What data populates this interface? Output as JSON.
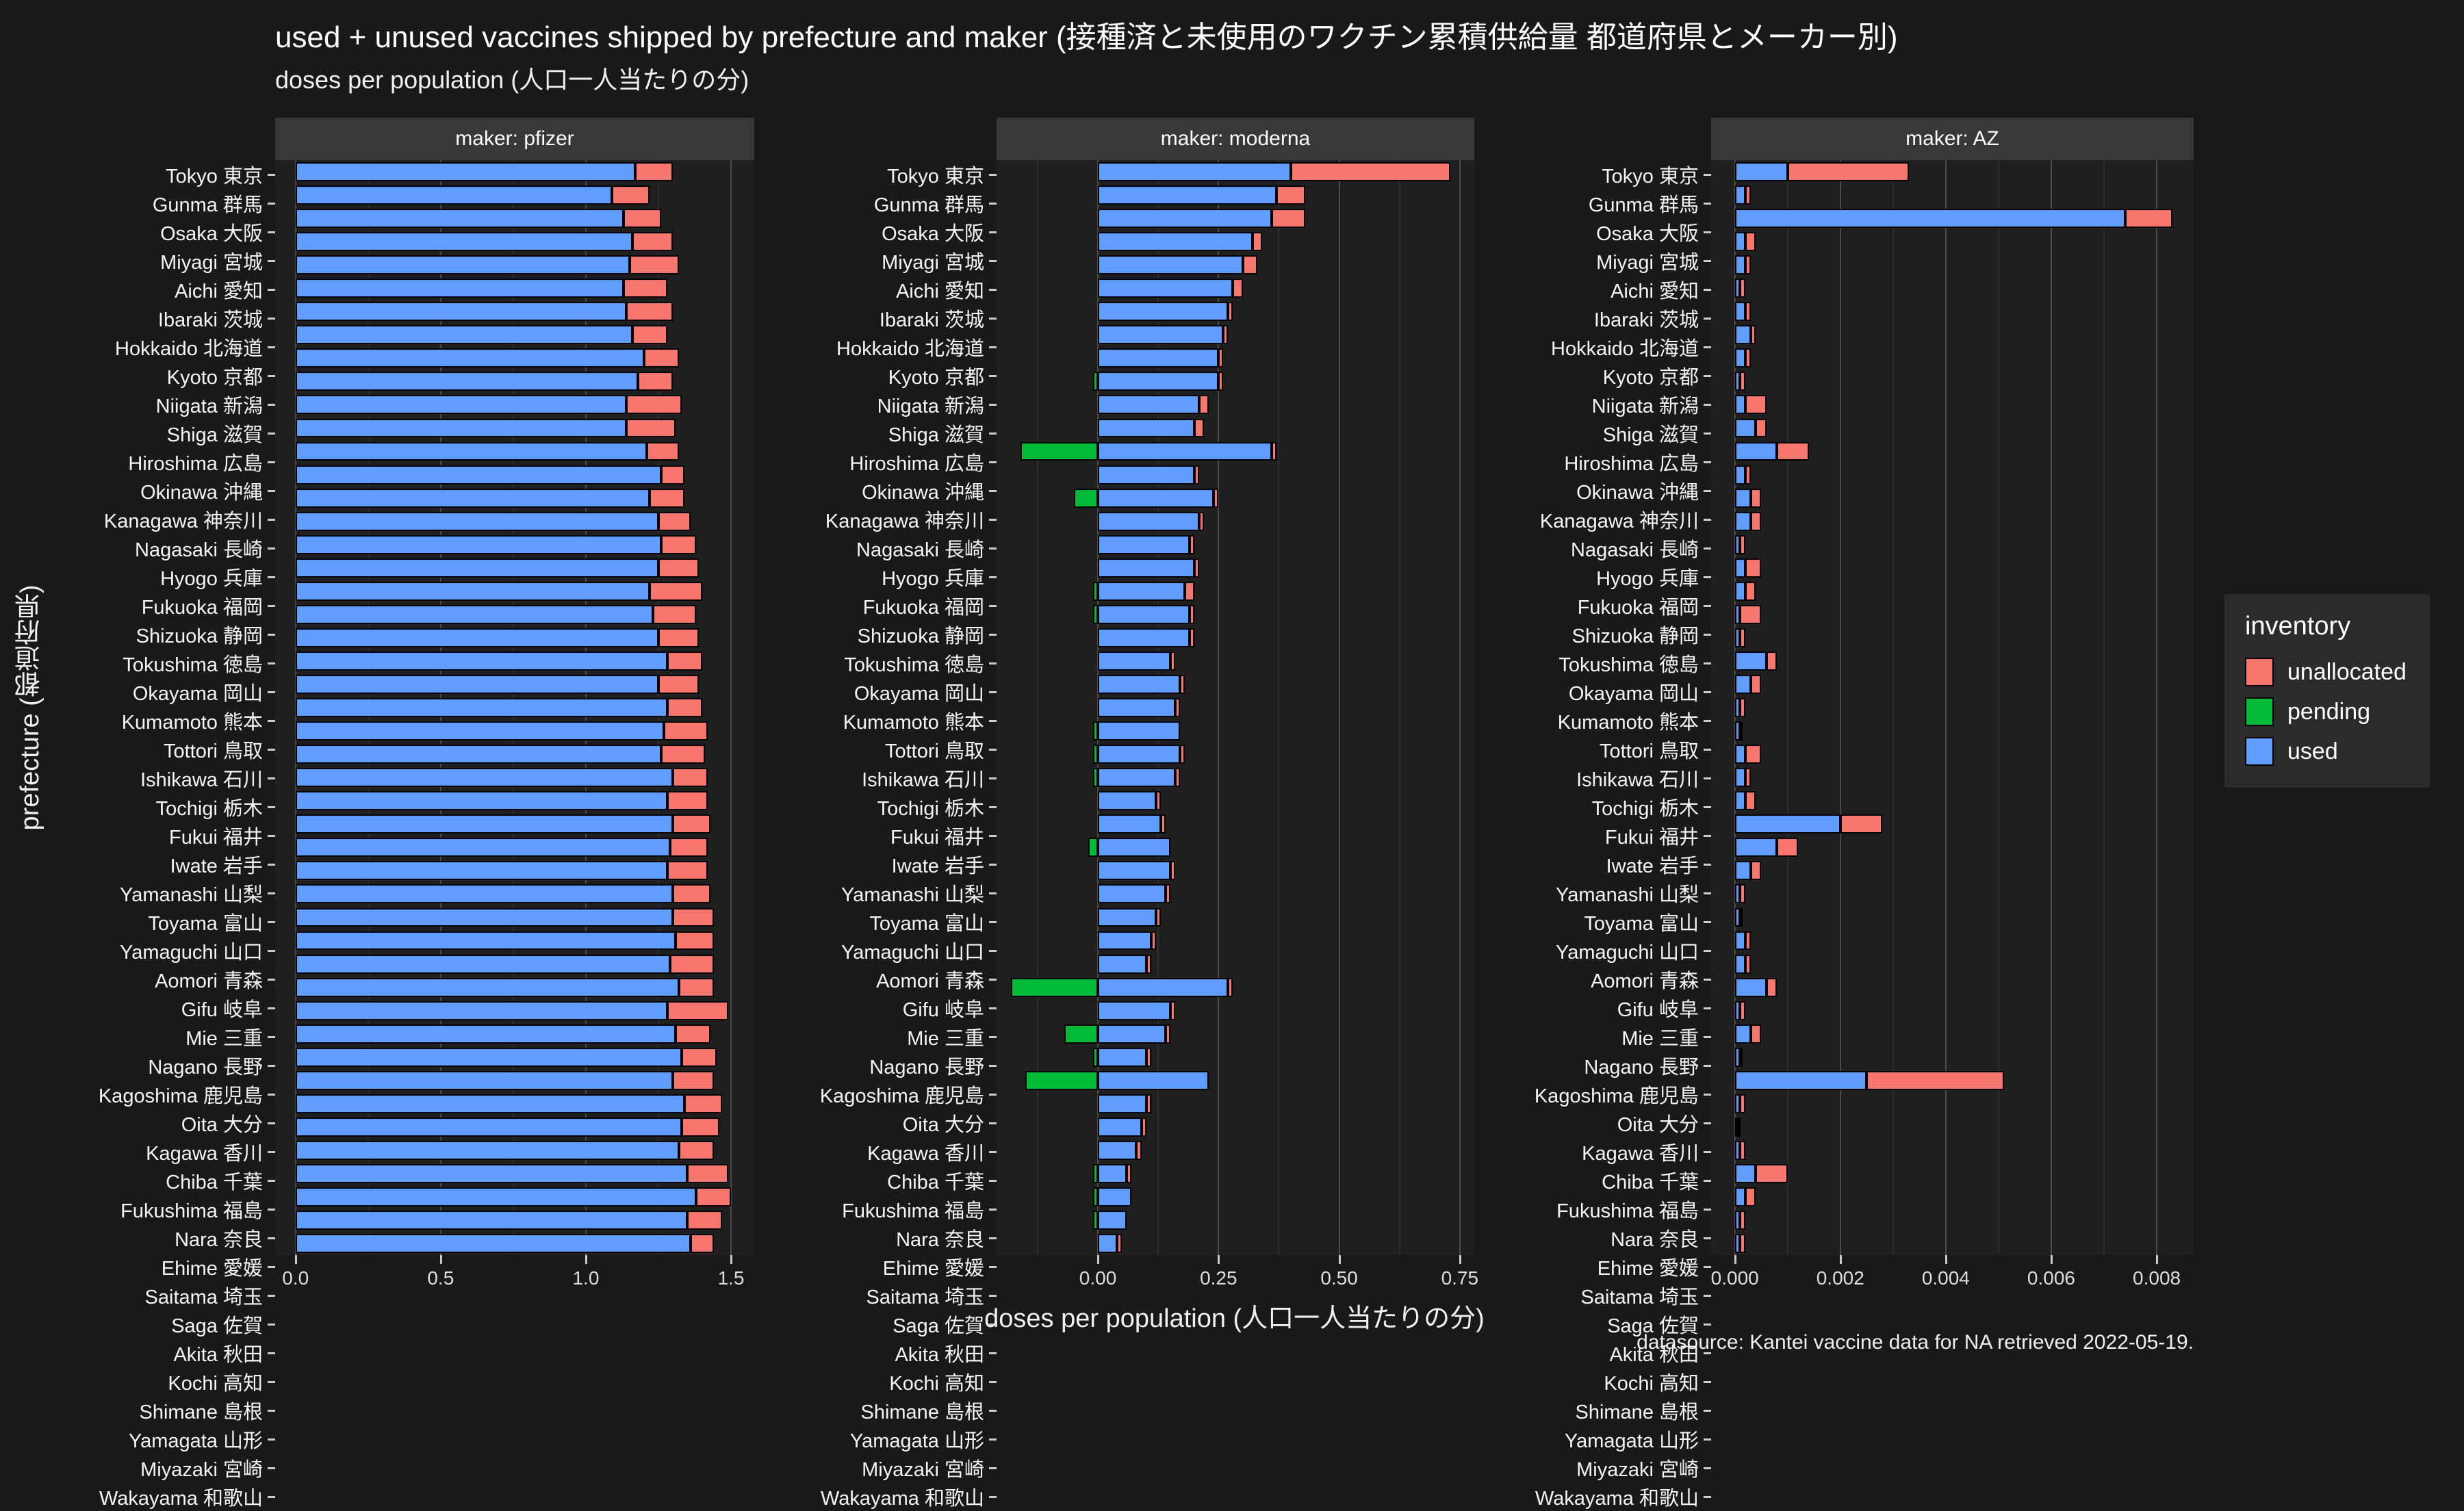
{
  "title": "used + unused vaccines shipped by prefecture and maker (接種済と未使用のワクチン累積供給量 都道府県とメーカー別)",
  "subtitle": "doses per population (人口一人当たりの分)",
  "xlabel": "doses per population (人口一人当たりの分)",
  "ylabel": "prefecture (都道府県)",
  "caption": "datasource: Kantei vaccine data for NA retrieved 2022-05-19.",
  "colors": {
    "used": "#619CFF",
    "pending": "#00BA38",
    "unallocated": "#F8766D",
    "background": "#191919",
    "panel": "#1f1f1f",
    "strip": "#383838"
  },
  "legend": {
    "title": "inventory",
    "position": "right",
    "items": [
      {
        "label": "unallocated",
        "color": "#F8766D"
      },
      {
        "label": "pending",
        "color": "#00BA38"
      },
      {
        "label": "used",
        "color": "#619CFF"
      }
    ]
  },
  "chart_data": {
    "type": "bar",
    "orientation": "horizontal",
    "stacking": "stacked",
    "categories": [
      "Tokyo 東京",
      "Gunma 群馬",
      "Osaka 大阪",
      "Miyagi 宮城",
      "Aichi 愛知",
      "Ibaraki 茨城",
      "Hokkaido 北海道",
      "Kyoto 京都",
      "Niigata 新潟",
      "Shiga 滋賀",
      "Hiroshima 広島",
      "Okinawa 沖縄",
      "Kanagawa 神奈川",
      "Nagasaki 長崎",
      "Hyogo 兵庫",
      "Fukuoka 福岡",
      "Shizuoka 静岡",
      "Tokushima 徳島",
      "Okayama 岡山",
      "Kumamoto 熊本",
      "Tottori 鳥取",
      "Ishikawa 石川",
      "Tochigi 栃木",
      "Fukui 福井",
      "Iwate 岩手",
      "Yamanashi 山梨",
      "Toyama 富山",
      "Yamaguchi 山口",
      "Aomori 青森",
      "Gifu 岐阜",
      "Mie 三重",
      "Nagano 長野",
      "Kagoshima 鹿児島",
      "Oita 大分",
      "Kagawa 香川",
      "Chiba 千葉",
      "Fukushima 福島",
      "Nara 奈良",
      "Ehime 愛媛",
      "Saitama 埼玉",
      "Saga 佐賀",
      "Akita 秋田",
      "Kochi 高知",
      "Shimane 島根",
      "Yamagata 山形",
      "Miyazaki 宮崎",
      "Wakayama 和歌山"
    ],
    "facets": [
      {
        "label": "maker: pfizer",
        "xlim": [
          -0.07,
          1.58
        ],
        "ticks": [
          0,
          0.5,
          1.0,
          1.5
        ],
        "tick_labels": [
          "0.0",
          "0.5",
          "1.0",
          "1.5"
        ],
        "series": {
          "used": [
            1.17,
            1.09,
            1.13,
            1.16,
            1.15,
            1.13,
            1.14,
            1.16,
            1.2,
            1.18,
            1.14,
            1.14,
            1.21,
            1.26,
            1.22,
            1.25,
            1.26,
            1.25,
            1.22,
            1.23,
            1.25,
            1.28,
            1.25,
            1.28,
            1.27,
            1.26,
            1.3,
            1.28,
            1.3,
            1.29,
            1.28,
            1.3,
            1.3,
            1.31,
            1.29,
            1.32,
            1.28,
            1.31,
            1.33,
            1.3,
            1.34,
            1.33,
            1.32,
            1.35,
            1.38,
            1.35,
            1.36
          ],
          "unallocated": [
            0.13,
            0.13,
            0.13,
            0.14,
            0.17,
            0.15,
            0.16,
            0.12,
            0.12,
            0.12,
            0.19,
            0.17,
            0.11,
            0.08,
            0.12,
            0.11,
            0.12,
            0.14,
            0.18,
            0.15,
            0.14,
            0.12,
            0.14,
            0.12,
            0.15,
            0.15,
            0.12,
            0.14,
            0.13,
            0.13,
            0.14,
            0.13,
            0.14,
            0.13,
            0.15,
            0.12,
            0.21,
            0.12,
            0.12,
            0.14,
            0.13,
            0.13,
            0.12,
            0.14,
            0.12,
            0.12,
            0.08
          ],
          "pending": [
            0,
            0,
            0,
            0,
            0,
            0,
            0,
            0,
            0,
            0,
            0,
            0,
            0,
            0,
            0,
            0,
            0,
            0,
            0,
            0,
            0,
            0,
            0,
            0,
            0,
            0,
            0,
            0,
            0,
            0,
            0,
            0,
            0,
            0,
            0,
            0,
            0,
            0,
            0,
            0,
            0,
            0,
            0,
            0,
            0,
            0,
            0
          ]
        }
      },
      {
        "label": "maker: moderna",
        "xlim": [
          -0.21,
          0.78
        ],
        "ticks": [
          0,
          0.25,
          0.5,
          0.75
        ],
        "tick_labels": [
          "0.00",
          "0.25",
          "0.50",
          "0.75"
        ],
        "series": {
          "used": [
            0.4,
            0.37,
            0.36,
            0.32,
            0.3,
            0.28,
            0.27,
            0.26,
            0.25,
            0.25,
            0.21,
            0.2,
            0.36,
            0.2,
            0.24,
            0.21,
            0.19,
            0.2,
            0.18,
            0.19,
            0.19,
            0.15,
            0.17,
            0.16,
            0.17,
            0.17,
            0.16,
            0.12,
            0.13,
            0.15,
            0.15,
            0.14,
            0.12,
            0.11,
            0.1,
            0.27,
            0.15,
            0.14,
            0.1,
            0.23,
            0.1,
            0.09,
            0.08,
            0.06,
            0.07,
            0.06,
            0.04
          ],
          "unallocated": [
            0.33,
            0.06,
            0.07,
            0.02,
            0.03,
            0.02,
            0.01,
            0.01,
            0.01,
            0.01,
            0.02,
            0.02,
            0.01,
            0.01,
            0.01,
            0.01,
            0.01,
            0.01,
            0.02,
            0.01,
            0.01,
            0.01,
            0.01,
            0.01,
            0.0,
            0.01,
            0.01,
            0.01,
            0.01,
            0.0,
            0.01,
            0.01,
            0.01,
            0.01,
            0.01,
            0.01,
            0.01,
            0.01,
            0.01,
            0.0,
            0.01,
            0.01,
            0.01,
            0.01,
            0.0,
            0.0,
            0.01
          ],
          "pending": [
            0,
            0,
            0,
            0,
            0,
            0,
            0,
            0,
            0,
            -0.01,
            0,
            0,
            -0.16,
            0,
            -0.05,
            0,
            0,
            0,
            -0.01,
            -0.01,
            0,
            0,
            0,
            0,
            -0.01,
            -0.01,
            -0.01,
            0,
            0,
            -0.02,
            0,
            0,
            0,
            0,
            0,
            -0.18,
            0,
            -0.07,
            -0.01,
            -0.15,
            0,
            0,
            0,
            -0.01,
            -0.01,
            -0.01,
            0
          ]
        }
      },
      {
        "label": "maker: AZ",
        "xlim": [
          -0.00045,
          0.0087
        ],
        "ticks": [
          0,
          0.002,
          0.004,
          0.006,
          0.008
        ],
        "tick_labels": [
          "0.000",
          "0.002",
          "0.004",
          "0.006",
          "0.008"
        ],
        "series": {
          "used": [
            0.001,
            0.0002,
            0.0074,
            0.0002,
            0.0002,
            0.0001,
            0.0002,
            0.0003,
            0.0002,
            0.0001,
            0.0002,
            0.0004,
            0.0008,
            0.0002,
            0.0003,
            0.0003,
            0.0001,
            0.0002,
            0.0002,
            0.0001,
            0.0001,
            0.0006,
            0.0003,
            0.0001,
            0.0001,
            0.0002,
            0.0002,
            0.0002,
            0.002,
            0.0008,
            0.0003,
            0.0001,
            0.0001,
            0.0002,
            0.0002,
            0.0006,
            0.0001,
            0.0003,
            0.0001,
            0.0025,
            0.0001,
            5e-05,
            0.0001,
            0.0004,
            0.0002,
            0.0001,
            0.0001
          ],
          "unallocated": [
            0.0023,
            0.0001,
            0.0009,
            0.0002,
            0.0001,
            0.0001,
            0.0001,
            0.0001,
            0.0001,
            0.0001,
            0.0004,
            0.0002,
            0.0006,
            0.0001,
            0.0002,
            0.0002,
            0.0001,
            0.0003,
            0.0002,
            0.0004,
            0.0001,
            0.0002,
            0.0002,
            0.0001,
            5e-05,
            0.0003,
            0.0001,
            0.0002,
            0.0008,
            0.0004,
            0.0002,
            0.0001,
            5e-05,
            0.0001,
            0.0001,
            0.0002,
            0.0001,
            0.0002,
            5e-05,
            0.0026,
            0.0001,
            5e-05,
            0.0001,
            0.0006,
            0.0002,
            0.0001,
            0.0001
          ],
          "pending": [
            0,
            0,
            0,
            0,
            0,
            0,
            0,
            0,
            0,
            0,
            0,
            0,
            0,
            0,
            0,
            0,
            0,
            0,
            0,
            0,
            0,
            0,
            0,
            0,
            0,
            0,
            0,
            0,
            0,
            0,
            0,
            0,
            0,
            0,
            0,
            0,
            0,
            0,
            0,
            0,
            0,
            0,
            0,
            0,
            0,
            0,
            0
          ]
        }
      }
    ]
  }
}
